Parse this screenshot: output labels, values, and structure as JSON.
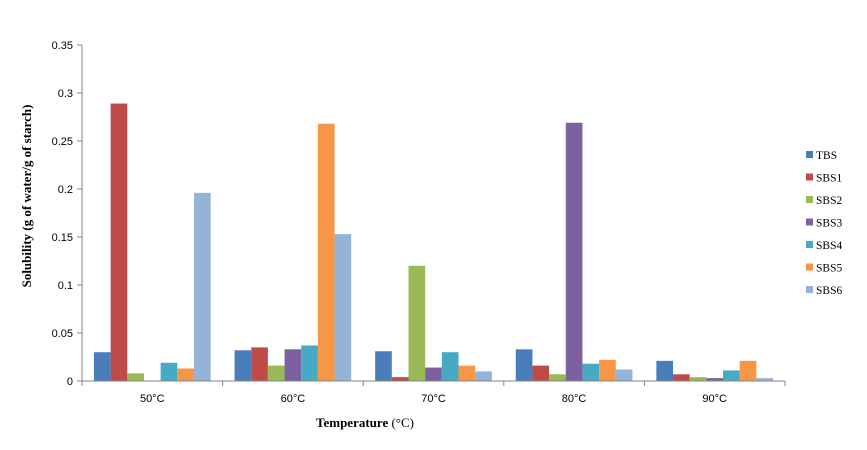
{
  "chart_data": {
    "type": "bar",
    "title": "",
    "xlabel": "Temperature",
    "xlabel_unit": "(°C)",
    "ylabel": "Solubility (g of water/g of starch)",
    "ylim": [
      0,
      0.35
    ],
    "yticks": [
      "0",
      "0.05",
      "0.1",
      "0.15",
      "0.2",
      "0.25",
      "0.3",
      "0.35"
    ],
    "categories": [
      "50°C",
      "60°C",
      "70°C",
      "80°C",
      "90°C"
    ],
    "grid": false,
    "legend_position": "right",
    "series": [
      {
        "name": "TBS",
        "color": "#4a7ebb",
        "values": [
          0.03,
          0.032,
          0.031,
          0.033,
          0.021
        ]
      },
      {
        "name": "SBS1",
        "color": "#be4b48",
        "values": [
          0.289,
          0.035,
          0.004,
          0.016,
          0.007
        ]
      },
      {
        "name": "SBS2",
        "color": "#98b954",
        "values": [
          0.008,
          0.016,
          0.12,
          0.007,
          0.004
        ]
      },
      {
        "name": "SBS3",
        "color": "#7d60a0",
        "values": [
          0.0,
          0.033,
          0.014,
          0.269,
          0.003
        ]
      },
      {
        "name": "SBS4",
        "color": "#46aac5",
        "values": [
          0.019,
          0.037,
          0.03,
          0.018,
          0.011
        ]
      },
      {
        "name": "SBS5",
        "color": "#f79646",
        "values": [
          0.013,
          0.268,
          0.016,
          0.022,
          0.021
        ]
      },
      {
        "name": "SBS6",
        "color": "#95b3d7",
        "values": [
          0.196,
          0.153,
          0.01,
          0.012,
          0.003
        ]
      }
    ]
  }
}
